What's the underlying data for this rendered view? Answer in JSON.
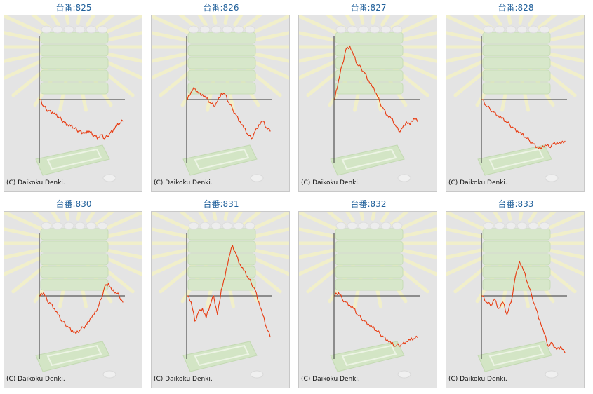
{
  "copyright": "(C) Daikoku Denki.",
  "colors": {
    "line": "#e83a10",
    "axis": "#333333",
    "title": "#1f5f9a",
    "background": "#e4e4e4"
  },
  "chart_data": [
    {
      "type": "line",
      "title": "台番:825",
      "ylim": [
        -100,
        100
      ],
      "values": [
        0,
        -10,
        -15,
        -18,
        -20,
        -24,
        -28,
        -32,
        -36,
        -40,
        -42,
        -45,
        -48,
        -50,
        -52,
        -54,
        -50,
        -55,
        -58,
        -60,
        -56,
        -62,
        -58,
        -52,
        -47,
        -42,
        -38,
        -34
      ]
    },
    {
      "type": "line",
      "title": "台番:826",
      "ylim": [
        -100,
        100
      ],
      "values": [
        0,
        12,
        18,
        10,
        8,
        2,
        -5,
        -10,
        -3,
        10,
        8,
        -5,
        -15,
        -25,
        -35,
        -45,
        -55,
        -62,
        -50,
        -40,
        -34,
        -45,
        -50
      ]
    },
    {
      "type": "line",
      "title": "台番:827",
      "ylim": [
        -100,
        100
      ],
      "values": [
        0,
        30,
        55,
        80,
        85,
        70,
        55,
        50,
        42,
        30,
        20,
        10,
        -5,
        -15,
        -25,
        -30,
        -40,
        -50,
        -45,
        -35,
        -40,
        -30,
        -35
      ]
    },
    {
      "type": "line",
      "title": "台番:828",
      "ylim": [
        -100,
        100
      ],
      "values": [
        0,
        -10,
        -15,
        -20,
        -25,
        -30,
        -35,
        -40,
        -45,
        -50,
        -55,
        -60,
        -65,
        -70,
        -75,
        -78,
        -72,
        -75,
        -70,
        -68,
        -70,
        -66
      ]
    },
    {
      "type": "line",
      "title": "台番:830",
      "ylim": [
        -100,
        100
      ],
      "values": [
        0,
        5,
        -8,
        -12,
        -20,
        -30,
        -40,
        -45,
        -50,
        -55,
        -60,
        -55,
        -50,
        -45,
        -35,
        -30,
        -20,
        -5,
        15,
        20,
        8,
        5,
        0,
        -10
      ]
    },
    {
      "type": "line",
      "title": "台番:831",
      "ylim": [
        -100,
        100
      ],
      "values": [
        0,
        -10,
        -40,
        -25,
        -20,
        -35,
        -15,
        0,
        -30,
        10,
        30,
        60,
        80,
        65,
        50,
        40,
        30,
        20,
        10,
        -10,
        -30,
        -50,
        -65
      ]
    },
    {
      "type": "line",
      "title": "台番:832",
      "ylim": [
        -100,
        100
      ],
      "values": [
        0,
        5,
        -5,
        -10,
        -15,
        -20,
        -30,
        -35,
        -40,
        -45,
        -50,
        -55,
        -60,
        -65,
        -70,
        -75,
        -80,
        -78,
        -76,
        -72,
        -70,
        -68,
        -66
      ]
    },
    {
      "type": "line",
      "title": "台番:833",
      "ylim": [
        -100,
        100
      ],
      "values": [
        0,
        -10,
        -15,
        -5,
        -20,
        -10,
        -30,
        -10,
        30,
        55,
        40,
        20,
        0,
        -20,
        -40,
        -60,
        -80,
        -75,
        -85,
        -80,
        -90
      ]
    }
  ]
}
